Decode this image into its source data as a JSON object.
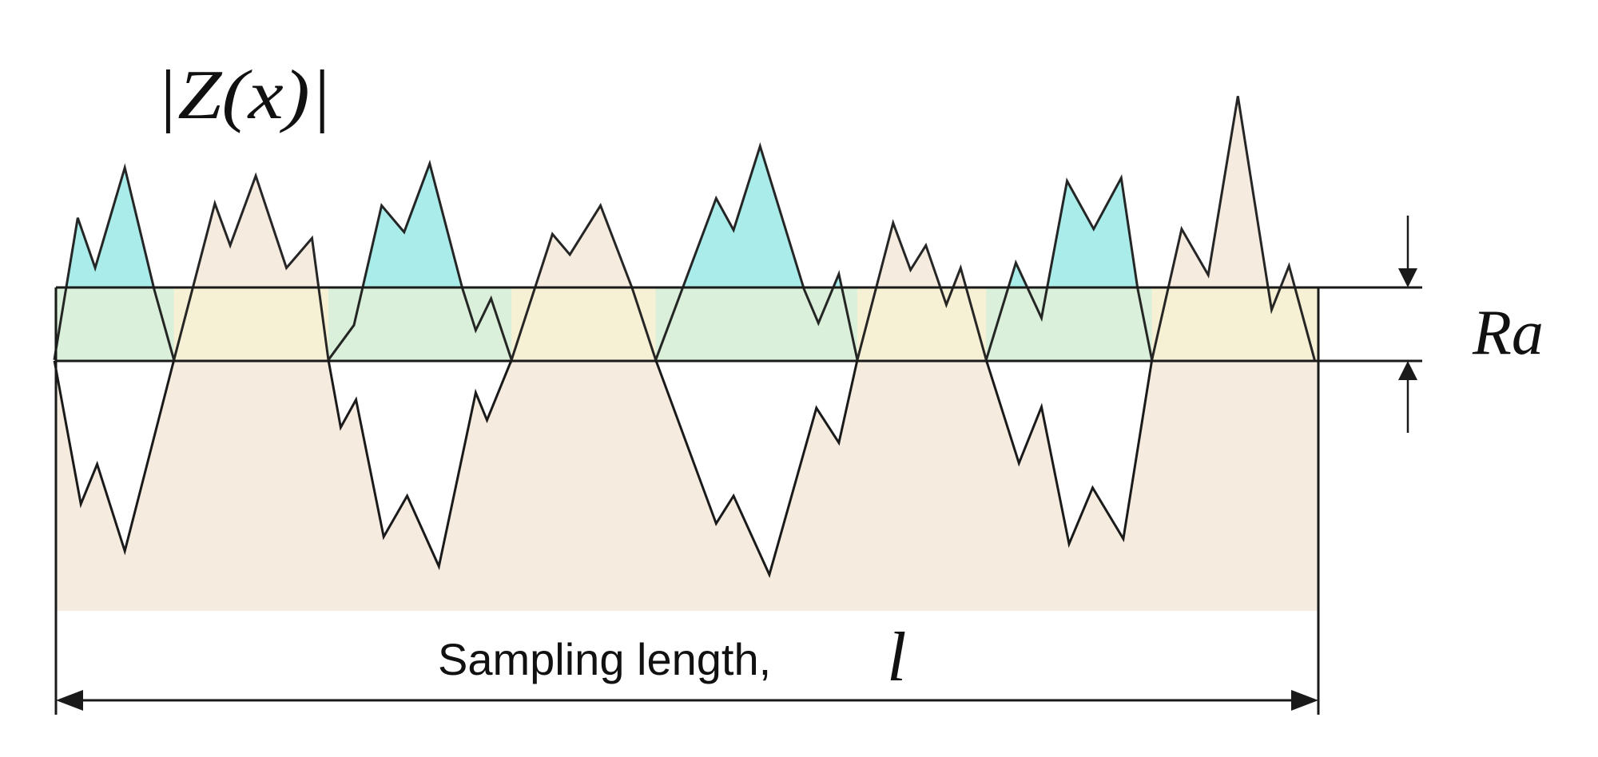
{
  "labels": {
    "abs_profile": "|Z(x)|",
    "ra": "Ra",
    "sampling_length": "Sampling length,",
    "length_symbol": "l"
  },
  "colors": {
    "upper_fill": "#a9ece9",
    "lower_fill": "#f5ebde",
    "band_fill": "#f6f1d4",
    "band_overlay": "#d7f0dc",
    "stroke": "#1a1a1a"
  }
}
